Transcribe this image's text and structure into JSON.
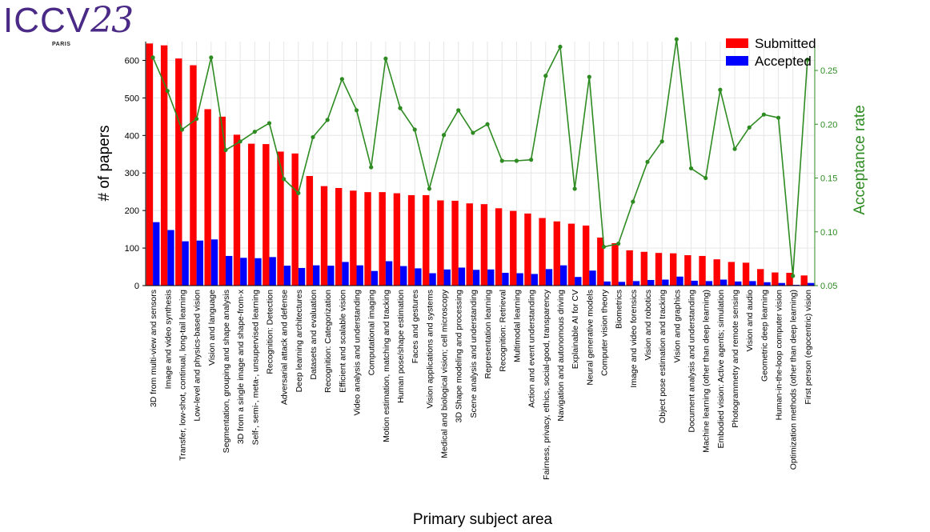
{
  "logo": {
    "main": "ICCV",
    "year": "23",
    "city": "PARIS"
  },
  "colors": {
    "submitted": "#ff0000",
    "accepted": "#0000ff",
    "rate": "#2e8b22",
    "grid": "#e6e6e6"
  },
  "chart_data": {
    "type": "bar",
    "title": "",
    "xlabel": "Primary subject area",
    "ylabel": "# of papers",
    "y2label": "Acceptance rate",
    "ylim": [
      0,
      650
    ],
    "y2lim": [
      0.05,
      0.2768
    ],
    "yticks": [
      0,
      100,
      200,
      300,
      400,
      500,
      600
    ],
    "y2ticks": [
      0.05,
      0.1,
      0.15,
      0.2,
      0.25
    ],
    "y2ticklabels": [
      "0.05",
      "0.10",
      "0.15",
      "0.20",
      "0.25"
    ],
    "legend_position": "top-right",
    "grid": true,
    "categories": [
      "3D from multi-view and sensors",
      "Image and video synthesis",
      "Transfer, low-shot, continual, long-tail learning",
      "Low-level and physics-based vision",
      "Vision and language",
      "Segmentation, grouping and shape analysis",
      "3D from a single image and shape-from-x",
      "Self-, semi-, meta-, unsupervised learning",
      "Recognition: Detection",
      "Adversarial attack and defense",
      "Deep learning architectures",
      "Datasets and evaluation",
      "Recognition: Categorization",
      "Efficient and scalable vision",
      "Video analysis and understanding",
      "Computational imaging",
      "Motion estimation, matching and tracking",
      "Human pose/shape estimation",
      "Faces and gestures",
      "Vision applications and systems",
      "Medical and biological vision; cell microscopy",
      "3D Shape modeling and processing",
      "Scene analysis and understanding",
      "Representation learning",
      "Recognition: Retrieval",
      "Multimodal learning",
      "Action and event understanding",
      "Fairness, privacy, ethics, social-good, transparency",
      "Navigation and autonomous driving",
      "Explainable AI for CV",
      "Neural generative models",
      "Computer vision theory",
      "Biometrics",
      "Image and video forensics",
      "Vision and robotics",
      "Object pose estimation and tracking",
      "Vision and graphics",
      "Document analysis and understanding",
      "Machine learning (other than deep learning)",
      "Embodied vision: Active agents; simulation",
      "Photogrammetry and remote sensing",
      "Vision and audio",
      "Geometric deep learning",
      "Human-in-the-loop computer vision",
      "Optimization methods (other than deep learning)",
      "First person (egocentric) vision"
    ],
    "series": [
      {
        "name": "Submitted",
        "axis": "left",
        "kind": "bar",
        "values": [
          645,
          640,
          605,
          587,
          470,
          450,
          402,
          378,
          377,
          357,
          352,
          292,
          265,
          260,
          253,
          249,
          249,
          246,
          241,
          241,
          227,
          226,
          219,
          217,
          206,
          199,
          192,
          180,
          171,
          165,
          160,
          128,
          113,
          94,
          90,
          87,
          86,
          81,
          79,
          70,
          63,
          61,
          44,
          35,
          34,
          27
        ]
      },
      {
        "name": "Accepted",
        "axis": "left",
        "kind": "bar",
        "values": [
          169,
          148,
          118,
          120,
          123,
          79,
          74,
          73,
          76,
          53,
          47,
          54,
          53,
          63,
          54,
          39,
          65,
          52,
          46,
          33,
          43,
          48,
          42,
          43,
          34,
          33,
          31,
          44,
          54,
          23,
          40,
          11,
          10,
          12,
          15,
          16,
          24,
          13,
          12,
          16,
          11,
          12,
          9,
          7,
          2,
          7
        ]
      },
      {
        "name": "Acceptance rate",
        "axis": "right",
        "kind": "line",
        "values": [
          0.262,
          0.231,
          0.195,
          0.205,
          0.262,
          0.176,
          0.184,
          0.193,
          0.201,
          0.149,
          0.136,
          0.188,
          0.204,
          0.242,
          0.213,
          0.16,
          0.261,
          0.215,
          0.195,
          0.14,
          0.19,
          0.213,
          0.192,
          0.2,
          0.166,
          0.166,
          0.167,
          0.245,
          0.272,
          0.14,
          0.244,
          0.086,
          0.089,
          0.128,
          0.165,
          0.184,
          0.279,
          0.159,
          0.15,
          0.232,
          0.177,
          0.197,
          0.209,
          0.206,
          0.059,
          0.26
        ]
      }
    ]
  }
}
